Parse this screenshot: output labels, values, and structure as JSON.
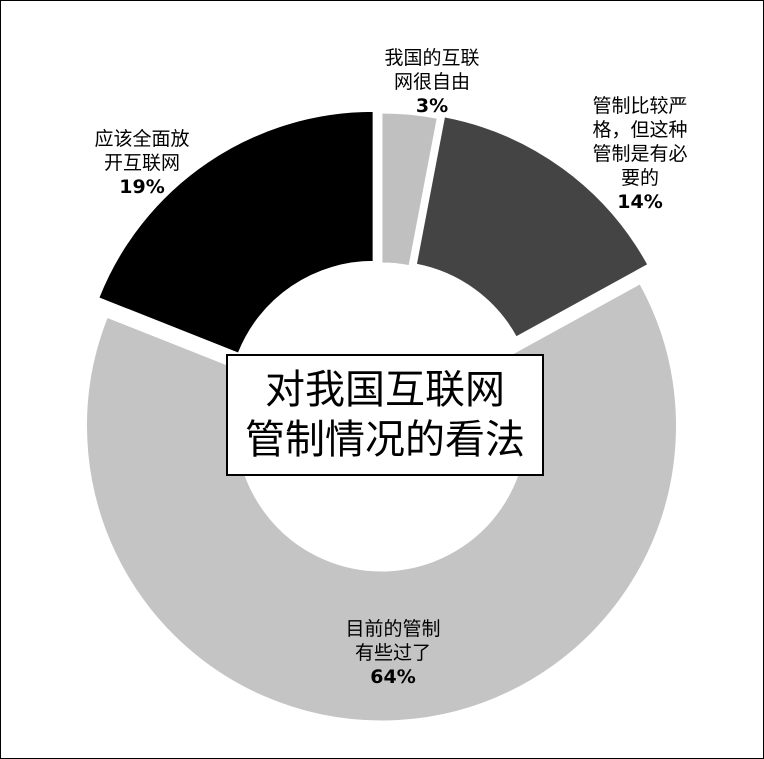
{
  "chart_data": {
    "type": "donut",
    "title": "对我国互联网\n管制情况的看法",
    "slices": [
      {
        "label": "我国的互联\n网很自由",
        "value": 3,
        "value_label": "3%",
        "color": "#c0c0c0"
      },
      {
        "label": "管制比较严\n格，但这种\n管制是有必\n要的",
        "value": 14,
        "value_label": "14%",
        "color": "#444444"
      },
      {
        "label": "目前的管制\n有些过了",
        "value": 64,
        "value_label": "64%",
        "color": "#c4c4c4"
      },
      {
        "label": "应该全面放\n开互联网",
        "value": 19,
        "value_label": "19%",
        "color": "#000000"
      }
    ],
    "exploded": true,
    "legend": "none"
  }
}
